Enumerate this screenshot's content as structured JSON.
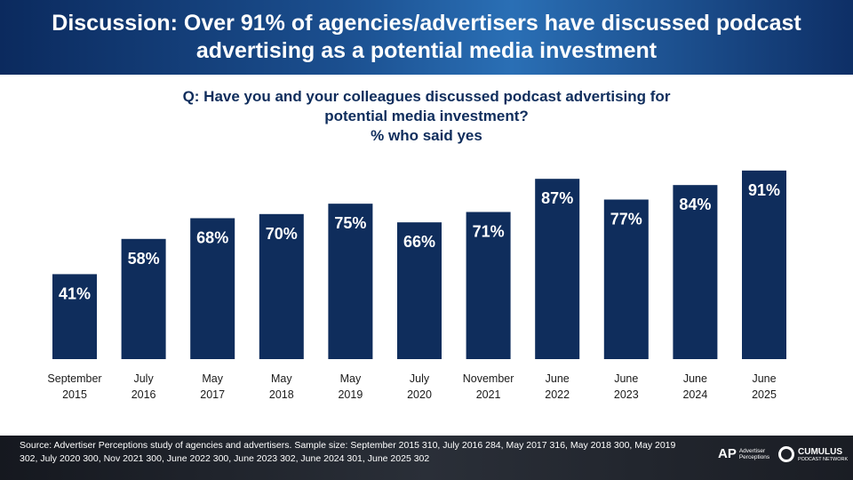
{
  "header": {
    "title": "Discussion: Over 91% of agencies/advertisers have discussed podcast advertising as a potential media investment"
  },
  "question": {
    "line1": "Q: Have you and your colleagues discussed podcast advertising for",
    "line2": "potential media investment?",
    "line3": "% who said yes"
  },
  "chart_data": {
    "type": "bar",
    "categories": [
      [
        "September",
        "2015"
      ],
      [
        "July",
        "2016"
      ],
      [
        "May",
        "2017"
      ],
      [
        "May",
        "2018"
      ],
      [
        "May",
        "2019"
      ],
      [
        "July",
        "2020"
      ],
      [
        "November",
        "2021"
      ],
      [
        "June",
        "2022"
      ],
      [
        "June",
        "2023"
      ],
      [
        "June",
        "2024"
      ],
      [
        "June",
        "2025"
      ]
    ],
    "values": [
      41,
      58,
      68,
      70,
      75,
      66,
      71,
      87,
      77,
      84,
      91
    ],
    "data_labels": [
      "41%",
      "58%",
      "68%",
      "70%",
      "75%",
      "66%",
      "71%",
      "87%",
      "77%",
      "84%",
      "91%"
    ],
    "ylim": [
      0,
      100
    ],
    "grid": false,
    "legend": "none",
    "bar_color": "#0f2d5c",
    "label_color": "#ffffff"
  },
  "footer": {
    "source": "Source: Advertiser Perceptions study of agencies and advertisers. Sample size: September 2015 310, July 2016 284, May 2017 316, May 2018 300, May 2019 302, July 2020 300, Nov 2021 300, June 2022 300, June 2023 302, June 2024 301, June 2025 302",
    "logo_ap_mark": "AP",
    "logo_ap_text1": "Advertiser",
    "logo_ap_text2": "Perceptions",
    "logo_cumulus_text1": "CUMULUS",
    "logo_cumulus_text2": "PODCAST NETWORK"
  }
}
